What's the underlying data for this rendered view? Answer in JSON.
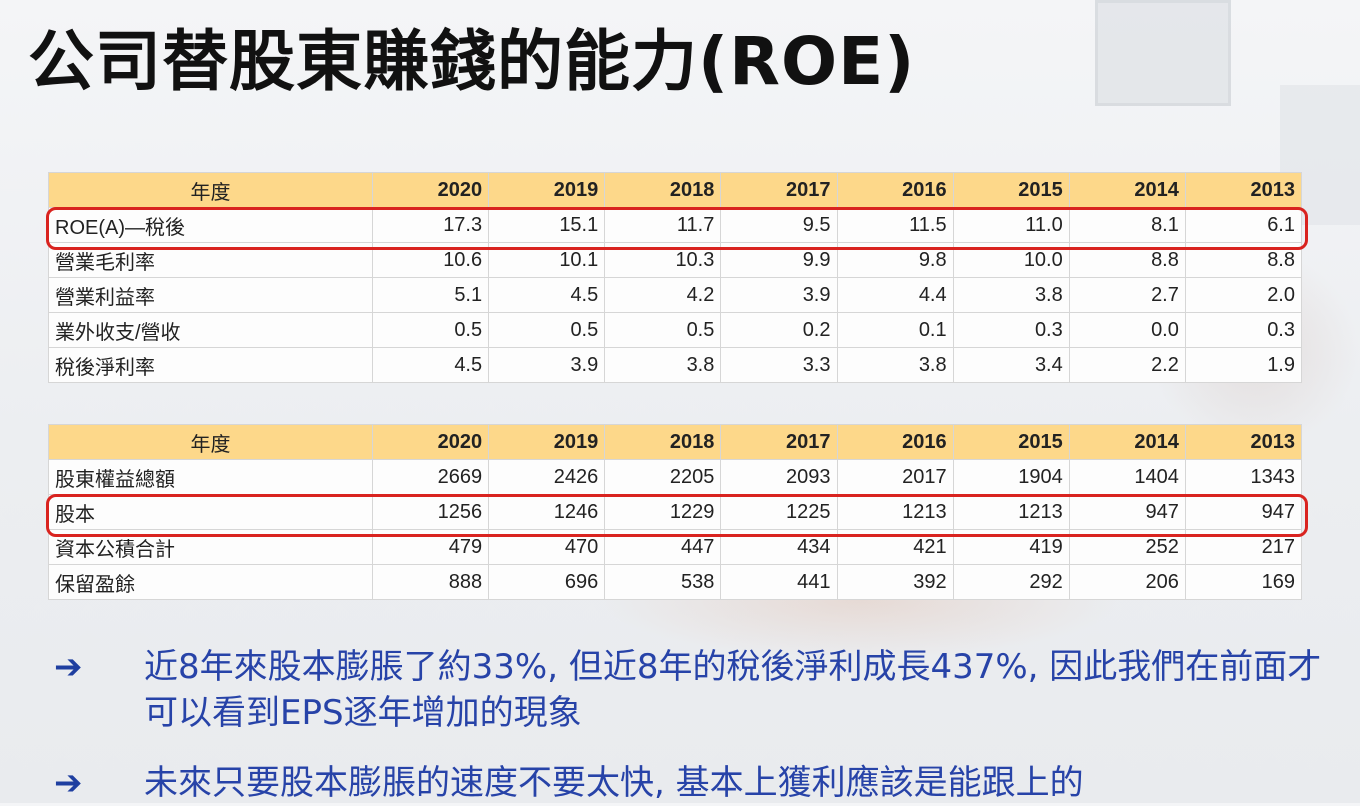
{
  "title": "公司替股東賺錢的能力(ROE)",
  "table1": {
    "header": [
      "年度",
      "2020",
      "2019",
      "2018",
      "2017",
      "2016",
      "2015",
      "2014",
      "2013"
    ],
    "rows": [
      {
        "label": "ROE(A)—稅後",
        "values": [
          "17.3",
          "15.1",
          "11.7",
          "9.5",
          "11.5",
          "11.0",
          "8.1",
          "6.1"
        ]
      },
      {
        "label": "營業毛利率",
        "values": [
          "10.6",
          "10.1",
          "10.3",
          "9.9",
          "9.8",
          "10.0",
          "8.8",
          "8.8"
        ]
      },
      {
        "label": "營業利益率",
        "values": [
          "5.1",
          "4.5",
          "4.2",
          "3.9",
          "4.4",
          "3.8",
          "2.7",
          "2.0"
        ]
      },
      {
        "label": "業外收支/營收",
        "values": [
          "0.5",
          "0.5",
          "0.5",
          "0.2",
          "0.1",
          "0.3",
          "0.0",
          "0.3"
        ]
      },
      {
        "label": "稅後淨利率",
        "values": [
          "4.5",
          "3.9",
          "3.8",
          "3.3",
          "3.8",
          "3.4",
          "2.2",
          "1.9"
        ]
      }
    ]
  },
  "table2": {
    "header": [
      "年度",
      "2020",
      "2019",
      "2018",
      "2017",
      "2016",
      "2015",
      "2014",
      "2013"
    ],
    "rows": [
      {
        "label": "股東權益總額",
        "values": [
          "2669",
          "2426",
          "2205",
          "2093",
          "2017",
          "1904",
          "1404",
          "1343"
        ]
      },
      {
        "label": "股本",
        "values": [
          "1256",
          "1246",
          "1229",
          "1225",
          "1213",
          "1213",
          "947",
          "947"
        ]
      },
      {
        "label": "資本公積合計",
        "values": [
          "479",
          "470",
          "447",
          "434",
          "421",
          "419",
          "252",
          "217"
        ]
      },
      {
        "label": "保留盈餘",
        "values": [
          "888",
          "696",
          "538",
          "441",
          "392",
          "292",
          "206",
          "169"
        ]
      }
    ]
  },
  "bullets": [
    {
      "arrow": "➔",
      "text": "近8年來股本膨脹了約33%, 但近8年的稅後淨利成長437%, 因此我們在前面才可以看到EPS逐年增加的現象"
    },
    {
      "arrow": "➔",
      "text": "未來只要股本膨脹的速度不要太快, 基本上獲利應該是能跟上的"
    }
  ],
  "colors": {
    "header_fill": "#fdd88a",
    "highlight_border": "#d9231f",
    "bullet_text": "#2743a8",
    "title_text": "#111111"
  }
}
